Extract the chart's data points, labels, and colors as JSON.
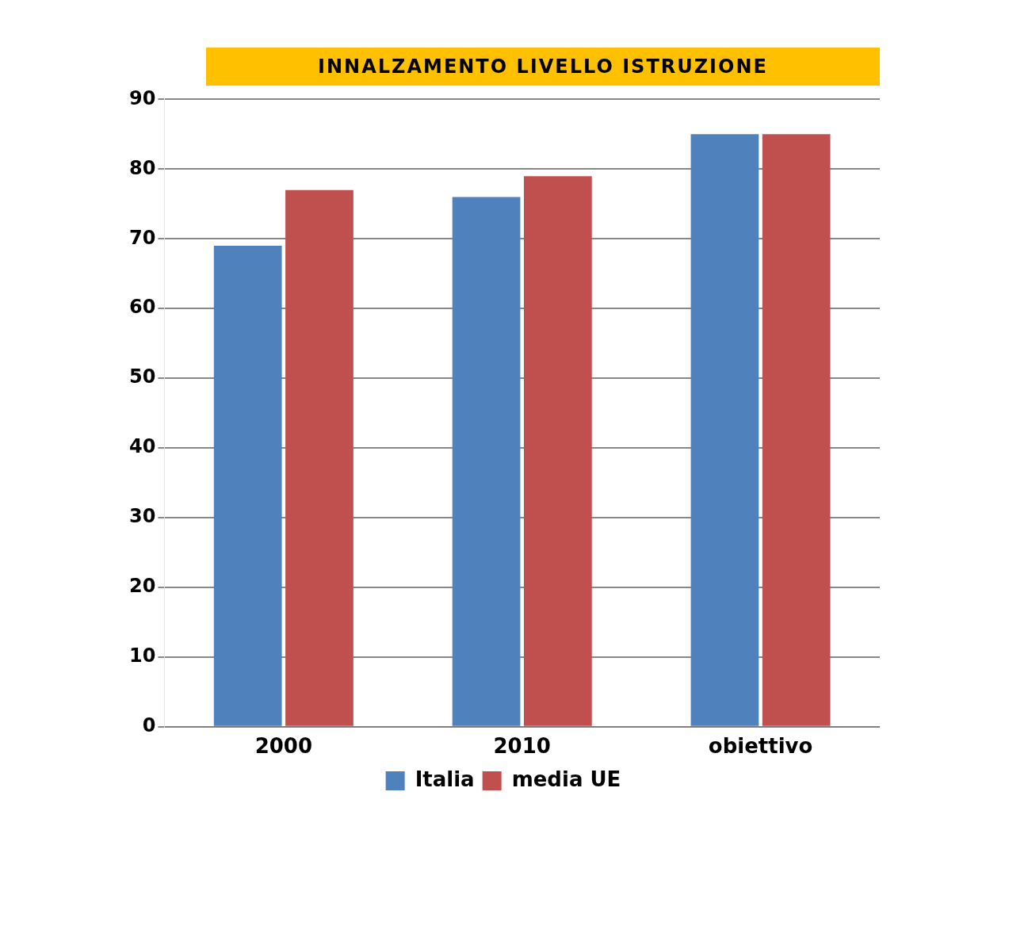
{
  "chart_data": {
    "type": "bar",
    "title": "INNALZAMENTO LIVELLO ISTRUZIONE",
    "categories": [
      "2000",
      "2010",
      "obiettivo"
    ],
    "series": [
      {
        "name": "Italia",
        "color": "#4f81bd",
        "values": [
          69,
          76,
          85
        ]
      },
      {
        "name": "media UE",
        "color": "#c0504d",
        "values": [
          77,
          79,
          85
        ]
      }
    ],
    "ylim": [
      0,
      90
    ],
    "yticks": [
      0,
      10,
      20,
      30,
      40,
      50,
      60,
      70,
      80,
      90
    ],
    "grid": "y",
    "legend": "bottom"
  }
}
